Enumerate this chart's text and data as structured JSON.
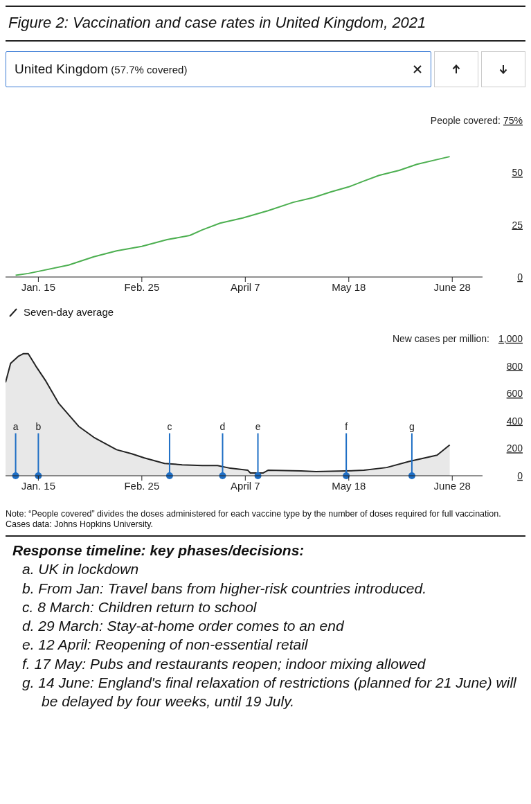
{
  "chart_data": [
    {
      "type": "line",
      "title": "Figure 2: Vaccination and case rates in United Kingdom, 2021",
      "subtitle": "United Kingdom (57.7% covered)",
      "ylabel": "People covered:",
      "x": [
        "2021-01-06",
        "2021-01-11",
        "2021-01-15",
        "2021-01-27",
        "2021-02-06",
        "2021-02-15",
        "2021-02-25",
        "2021-03-07",
        "2021-03-16",
        "2021-03-21",
        "2021-03-28",
        "2021-04-06",
        "2021-04-16",
        "2021-04-26",
        "2021-05-04",
        "2021-05-11",
        "2021-05-18",
        "2021-05-24",
        "2021-05-30",
        "2021-06-07",
        "2021-06-14",
        "2021-06-22",
        "2021-06-27"
      ],
      "series": [
        {
          "color": "#4caf50",
          "values": [
            0.8,
            1.7,
            2.7,
            5.7,
            9.7,
            12.5,
            14.7,
            17.9,
            19.9,
            22.6,
            25.8,
            28.3,
            31.8,
            35.8,
            38.1,
            40.8,
            43.2,
            46,
            48.7,
            51.1,
            54,
            56.3,
            57.7
          ]
        }
      ],
      "xlim": [
        "2021-01-02",
        "2021-07-10"
      ],
      "xticks": [
        {
          "value": "2021-01-15",
          "label": "Jan. 15"
        },
        {
          "value": "2021-02-25",
          "label": "Feb. 25"
        },
        {
          "value": "2021-04-07",
          "label": "April 7"
        },
        {
          "value": "2021-05-18",
          "label": "May 18"
        },
        {
          "value": "2021-06-28",
          "label": "June 28"
        }
      ],
      "ylim": [
        0,
        75
      ],
      "yticks": [
        0,
        25,
        50,
        {
          "value": 75,
          "label": "75%"
        }
      ],
      "marker": "none",
      "grid": false,
      "legend": false
    },
    {
      "type": "area",
      "ylabel": "New cases per million:",
      "legend": "top left",
      "x": [
        "2021-01-02",
        "2021-01-04",
        "2021-01-07",
        "2021-01-09",
        "2021-01-11",
        "2021-01-14",
        "2021-01-18",
        "2021-01-23",
        "2021-01-31",
        "2021-02-06",
        "2021-02-15",
        "2021-02-21",
        "2021-02-26",
        "2021-03-06",
        "2021-03-13",
        "2021-03-21",
        "2021-03-27",
        "2021-04-01",
        "2021-04-08",
        "2021-04-09",
        "2021-04-14",
        "2021-04-16",
        "2021-04-29",
        "2021-05-05",
        "2021-05-17",
        "2021-05-24",
        "2021-06-02",
        "2021-06-11",
        "2021-06-22",
        "2021-06-27"
      ],
      "series": [
        {
          "name": "Seven-day average",
          "color": "#222222",
          "values": [
            680,
            820,
            870,
            890,
            890,
            800,
            690,
            530,
            360,
            280,
            190,
            160,
            130,
            90,
            80,
            75,
            75,
            55,
            40,
            20,
            20,
            40,
            35,
            30,
            35,
            40,
            60,
            105,
            150,
            225
          ]
        }
      ],
      "xlim": [
        "2021-01-02",
        "2021-07-10"
      ],
      "xticks": [
        {
          "value": "2021-01-15",
          "label": "Jan. 15"
        },
        {
          "value": "2021-02-25",
          "label": "Feb. 25"
        },
        {
          "value": "2021-04-07",
          "label": "April 7"
        },
        {
          "value": "2021-05-18",
          "label": "May 18"
        },
        {
          "value": "2021-06-28",
          "label": "June 28"
        }
      ],
      "ylim": [
        0,
        1000
      ],
      "yticks": [
        0,
        200,
        400,
        600,
        800,
        {
          "value": 1000,
          "label": "1,000"
        }
      ],
      "marker": "none",
      "grid": false,
      "ref_lines": [
        {
          "axis": "x",
          "value": "2021-01-06",
          "label": "a",
          "color": "#1f6fc5"
        },
        {
          "axis": "x",
          "value": "2021-01-15",
          "label": "b",
          "color": "#1f6fc5"
        },
        {
          "axis": "x",
          "value": "2021-03-08",
          "label": "c",
          "color": "#1f6fc5"
        },
        {
          "axis": "x",
          "value": "2021-03-29",
          "label": "d",
          "color": "#1f6fc5"
        },
        {
          "axis": "x",
          "value": "2021-04-12",
          "label": "e",
          "color": "#1f6fc5"
        },
        {
          "axis": "x",
          "value": "2021-05-17",
          "label": "f",
          "color": "#1f6fc5"
        },
        {
          "axis": "x",
          "value": "2021-06-12",
          "label": "g",
          "color": "#1f6fc5"
        }
      ],
      "annotations": [
        "Note: “People covered” divides the doses administered for each vaccine type by the number of doses required for full vaccination. Cases data: Johns Hopkins University.",
        "Response timeline: key phases/decisions:",
        "a. UK in lockdown",
        "b. From Jan: Travel bans from higher-risk countries introduced.",
        "c. 8 March: Children return to school",
        "d. 29 March: Stay-at-home order comes to an end",
        "e. 12 April: Reopening of non-essential retail",
        "f. 17 May: Pubs and restaurants reopen; indoor mixing allowed",
        "g. 14 June: England's final relaxation of restrictions (planned for 21 June) will be delayed by four weeks, until 19 July."
      ]
    }
  ]
}
